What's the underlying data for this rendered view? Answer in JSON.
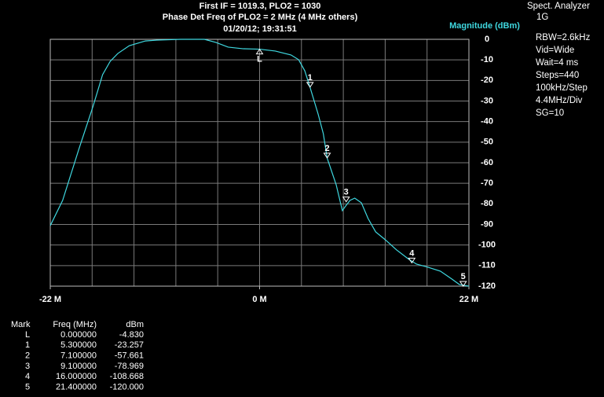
{
  "chart_data": {
    "type": "line",
    "title": [
      "First IF = 1019.3, PLO2 = 1030",
      "Phase Det Freq of PLO2 = 2 MHz (4 MHz others)",
      "01/20/12; 19:31:51"
    ],
    "y_label": "Magnitude (dBm)",
    "xlim": [
      -22,
      22
    ],
    "xticks": [
      {
        "value": -22,
        "label": "-22 M"
      },
      {
        "value": 0,
        "label": "0 M"
      },
      {
        "value": 22,
        "label": "22 M"
      }
    ],
    "ylim": [
      -120,
      0
    ],
    "yticks": [
      0,
      -10,
      -20,
      -30,
      -40,
      -50,
      -60,
      -70,
      -80,
      -90,
      -100,
      -110,
      -120
    ],
    "grid": true,
    "series": [
      {
        "name": "trace",
        "color": "#3fd8e0",
        "x": [
          -22,
          -20.7,
          -19.0,
          -17.5,
          -16.5,
          -15.7,
          -14.9,
          -13.7,
          -12.0,
          -10.8,
          -8.3,
          -5.8,
          -4.6,
          -3.3,
          -1.7,
          0,
          1.65,
          3.3,
          4.1,
          4.75,
          5.3,
          6.15,
          6.7,
          7.1,
          8.05,
          8.7,
          9.05,
          9.5,
          10.0,
          10.7,
          11.4,
          12.2,
          13.2,
          14.4,
          15.7,
          16.5,
          17.7,
          19.0,
          20.2,
          21.0,
          22
        ],
        "values": [
          -90.6,
          -78.3,
          -53.5,
          -32.5,
          -17.2,
          -10.7,
          -6.9,
          -3.1,
          -0.8,
          -0.4,
          0,
          0,
          -1.5,
          -3.8,
          -4.6,
          -4.8,
          -5.7,
          -7.6,
          -9.9,
          -15.3,
          -23.3,
          -36.3,
          -45.9,
          -57.7,
          -70.7,
          -83.3,
          -81,
          -78.3,
          -77.2,
          -79.5,
          -87.1,
          -93.6,
          -97.4,
          -102.4,
          -107,
          -109.3,
          -110.8,
          -112.7,
          -116.5,
          -119.2,
          -120
        ]
      }
    ],
    "markers": [
      {
        "label": "L",
        "freq": 0,
        "dbm": -4.83,
        "freq_label": "0.000000",
        "dbm_label": "-4.830"
      },
      {
        "label": "1",
        "freq": 5.3,
        "dbm": -23.257,
        "freq_label": "5.300000",
        "dbm_label": "-23.257"
      },
      {
        "label": "2",
        "freq": 7.1,
        "dbm": -57.661,
        "freq_label": "7.100000",
        "dbm_label": "-57.661"
      },
      {
        "label": "3",
        "freq": 9.1,
        "dbm": -78.969,
        "freq_label": "9.100000",
        "dbm_label": "-78.969"
      },
      {
        "label": "4",
        "freq": 16,
        "dbm": -108.668,
        "freq_label": "16.000000",
        "dbm_label": "-108.668"
      },
      {
        "label": "5",
        "freq": 21.4,
        "dbm": -120,
        "freq_label": "21.400000",
        "dbm_label": "-120.000"
      }
    ],
    "table_headers": [
      "Mark",
      "Freq (MHz)",
      "dBm"
    ],
    "settings": [
      "Spect. Analyzer",
      "1G",
      "RBW=2.6kHz",
      "Vid=Wide",
      "Wait=4 ms",
      "Steps=440",
      "100kHz/Step",
      "4.4MHz/Div",
      "SG=10"
    ]
  }
}
